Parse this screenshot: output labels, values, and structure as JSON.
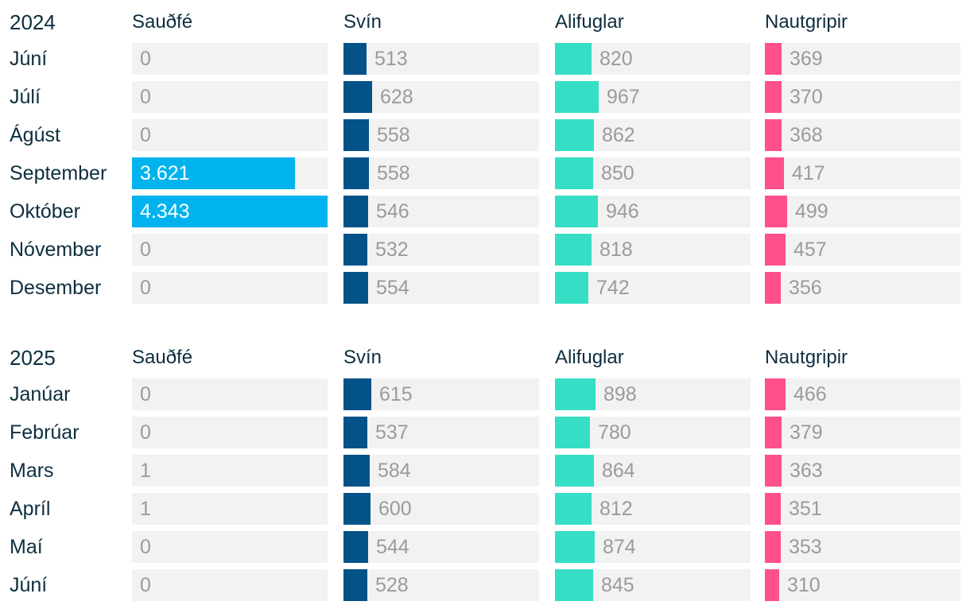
{
  "colors": {
    "sheep": "#00b3ee",
    "pigs": "#035288",
    "poultry": "#35dec4",
    "cattle": "#ff4f8c",
    "track": "#f2f2f2",
    "label_text": "#0d2e3f",
    "value_text": "#9b9b9b"
  },
  "chart_data": {
    "type": "table",
    "columns": [
      "Sauðfé",
      "Svín",
      "Alifuglar",
      "Nautgripir"
    ],
    "series_keys": [
      "sheep",
      "pigs",
      "poultry",
      "cattle"
    ],
    "column_max": [
      4343,
      4343,
      4343,
      4343
    ],
    "groups": [
      {
        "year": "2024",
        "rows": [
          {
            "month": "Júní",
            "values": [
              0,
              513,
              820,
              369
            ],
            "labels": [
              "0",
              "513",
              "820",
              "369"
            ]
          },
          {
            "month": "Júlí",
            "values": [
              0,
              628,
              967,
              370
            ],
            "labels": [
              "0",
              "628",
              "967",
              "370"
            ]
          },
          {
            "month": "Ágúst",
            "values": [
              0,
              558,
              862,
              368
            ],
            "labels": [
              "0",
              "558",
              "862",
              "368"
            ]
          },
          {
            "month": "September",
            "values": [
              3621,
              558,
              850,
              417
            ],
            "labels": [
              "3.621",
              "558",
              "850",
              "417"
            ]
          },
          {
            "month": "Október",
            "values": [
              4343,
              546,
              946,
              499
            ],
            "labels": [
              "4.343",
              "546",
              "946",
              "499"
            ]
          },
          {
            "month": "Nóvember",
            "values": [
              0,
              532,
              818,
              457
            ],
            "labels": [
              "0",
              "532",
              "818",
              "457"
            ]
          },
          {
            "month": "Desember",
            "values": [
              0,
              554,
              742,
              356
            ],
            "labels": [
              "0",
              "554",
              "742",
              "356"
            ]
          }
        ]
      },
      {
        "year": "2025",
        "rows": [
          {
            "month": "Janúar",
            "values": [
              0,
              615,
              898,
              466
            ],
            "labels": [
              "0",
              "615",
              "898",
              "466"
            ]
          },
          {
            "month": "Febrúar",
            "values": [
              0,
              537,
              780,
              379
            ],
            "labels": [
              "0",
              "537",
              "780",
              "379"
            ]
          },
          {
            "month": "Mars",
            "values": [
              1,
              584,
              864,
              363
            ],
            "labels": [
              "1",
              "584",
              "864",
              "363"
            ]
          },
          {
            "month": "Apríl",
            "values": [
              1,
              600,
              812,
              351
            ],
            "labels": [
              "1",
              "600",
              "812",
              "351"
            ]
          },
          {
            "month": "Maí",
            "values": [
              0,
              544,
              874,
              353
            ],
            "labels": [
              "0",
              "544",
              "874",
              "353"
            ]
          },
          {
            "month": "Júní",
            "values": [
              0,
              528,
              845,
              310
            ],
            "labels": [
              "0",
              "528",
              "845",
              "310"
            ]
          }
        ]
      }
    ]
  }
}
